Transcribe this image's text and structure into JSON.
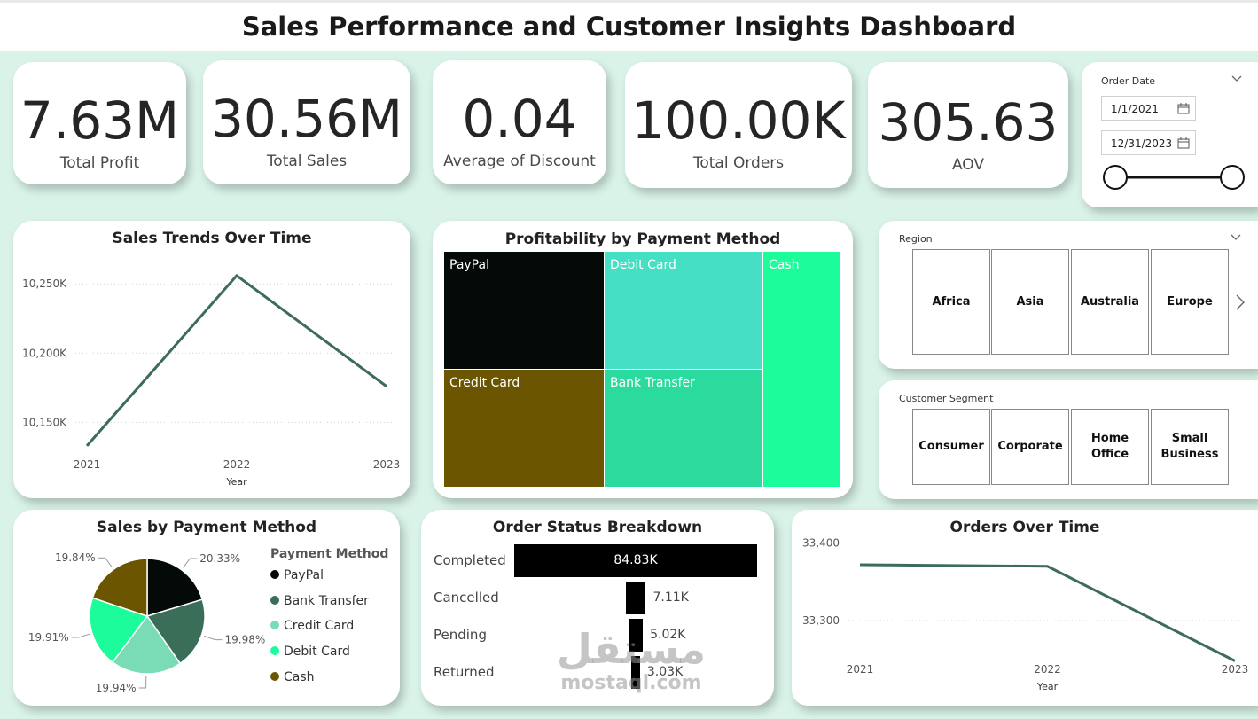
{
  "title": "Sales Performance and Customer Insights Dashboard",
  "kpis": {
    "profit": {
      "value": "7.63M",
      "label": "Total Profit"
    },
    "sales": {
      "value": "30.56M",
      "label": "Total Sales"
    },
    "discount": {
      "value": "0.04",
      "label": "Average of Discount"
    },
    "orders": {
      "value": "100.00K",
      "label": "Total Orders"
    },
    "aov": {
      "value": "305.63",
      "label": "AOV"
    }
  },
  "order_date": {
    "label": "Order Date",
    "start": "1/1/2021",
    "end": "12/31/2023"
  },
  "region": {
    "label": "Region",
    "items": [
      "Africa",
      "Asia",
      "Australia",
      "Europe"
    ]
  },
  "segment": {
    "label": "Customer Segment",
    "items": [
      "Consumer",
      "Corporate",
      "Home Office",
      "Small Business"
    ]
  },
  "colors": {
    "line": "#3d6b5c",
    "paypal": "#030a07",
    "bank_transfer": "#3b6e58",
    "credit_card": "#6b5500",
    "debit_card": "#45dfc4",
    "cash": "#1dfc9a",
    "bank_transfer_tree": "#2adb9d",
    "pie_credit": "#79dcb4"
  },
  "icons": [
    "chevron-down-icon",
    "calendar-icon",
    "chevron-right-icon"
  ],
  "watermark": {
    "arabic": "مستقل",
    "latin": "mostaql.com"
  },
  "chart_data": [
    {
      "type": "line",
      "title": "Sales Trends Over Time",
      "xlabel": "Year",
      "ylabel": "",
      "x": [
        "2021",
        "2022",
        "2023"
      ],
      "values": [
        10133,
        10256,
        10176
      ],
      "ylim": [
        10115,
        10270
      ],
      "yticks": [
        10150,
        10200,
        10250
      ],
      "ytick_labels": [
        "10,150K",
        "10,200K",
        "10,250K"
      ],
      "grid": true
    },
    {
      "type": "heatmap",
      "title": "Profitability by Payment Method",
      "tiles": [
        {
          "label": "PayPal",
          "color": "#030a07"
        },
        {
          "label": "Debit Card",
          "color": "#45dfc4"
        },
        {
          "label": "Cash",
          "color": "#1dfc9a"
        },
        {
          "label": "Credit Card",
          "color": "#6b5500"
        },
        {
          "label": "Bank Transfer",
          "color": "#2adb9d"
        }
      ]
    },
    {
      "type": "pie",
      "title": "Sales by Payment Method",
      "legend_title": "Payment Method",
      "legend_position": "right",
      "categories": [
        "PayPal",
        "Bank Transfer",
        "Credit Card",
        "Debit Card",
        "Cash"
      ],
      "values": [
        20.33,
        19.98,
        19.94,
        19.91,
        19.84
      ],
      "labels": [
        "20.33%",
        "19.98%",
        "19.94%",
        "19.91%",
        "19.84%"
      ],
      "colors": [
        "#030a07",
        "#3b6e58",
        "#79dcb4",
        "#1dfc9a",
        "#6b5500"
      ]
    },
    {
      "type": "bar",
      "title": "Order Status Breakdown",
      "categories": [
        "Completed",
        "Cancelled",
        "Pending",
        "Returned"
      ],
      "values": [
        84.83,
        7.11,
        5.02,
        3.03
      ],
      "labels": [
        "84.83K",
        "7.11K",
        "5.02K",
        "3.03K"
      ]
    },
    {
      "type": "line",
      "title": "Orders Over Time",
      "xlabel": "Year",
      "ylabel": "",
      "x": [
        "2021",
        "2022",
        "2023"
      ],
      "values": [
        33372,
        33370,
        33248
      ],
      "ylim": [
        33220,
        33420
      ],
      "yticks": [
        33300,
        33400
      ],
      "ytick_labels": [
        "33,300",
        "33,400"
      ],
      "grid": true
    }
  ]
}
